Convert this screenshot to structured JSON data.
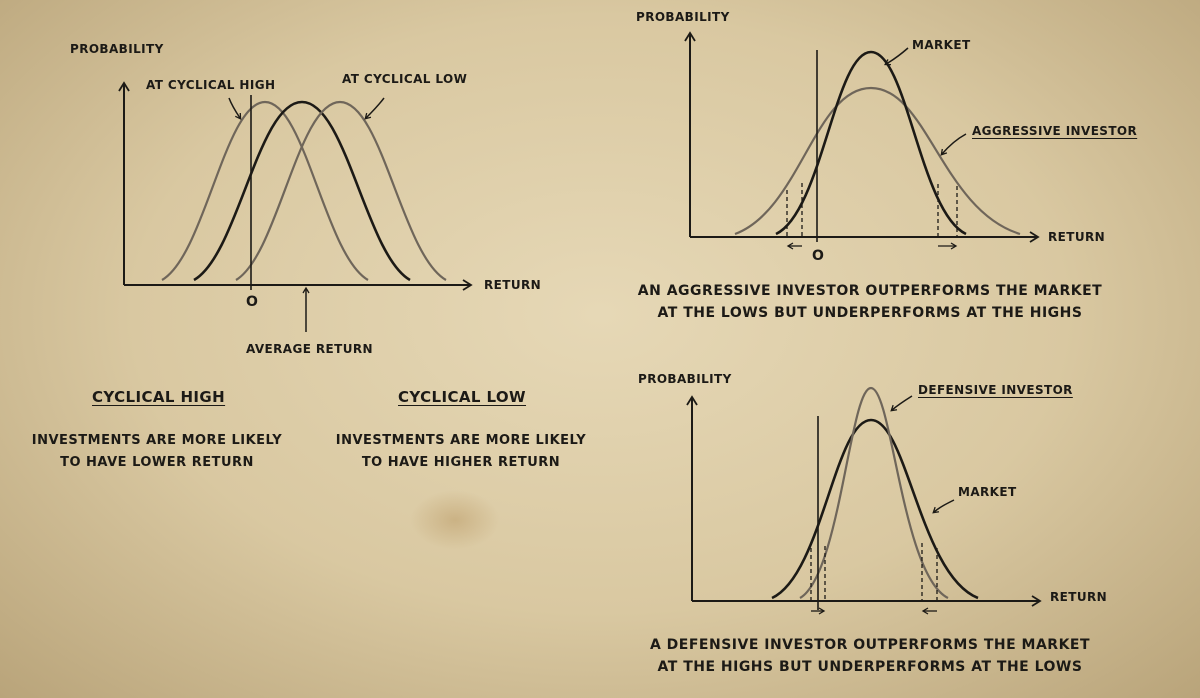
{
  "panel_cycle": {
    "y_axis_label": "PROBABILITY",
    "x_axis_label": "RETURN",
    "curve_high_label": "AT CYCLICAL HIGH",
    "curve_low_label": "AT CYCLICAL LOW",
    "zero_label": "O",
    "average_label": "AVERAGE RETURN"
  },
  "notes": {
    "high_heading": "CYCLICAL HIGH",
    "high_line1": "INVESTMENTS ARE MORE LIKELY",
    "high_line2": "TO HAVE LOWER RETURN",
    "low_heading": "CYCLICAL LOW",
    "low_line1": "INVESTMENTS ARE MORE LIKELY",
    "low_line2": "TO HAVE HIGHER RETURN"
  },
  "panel_aggressive": {
    "y_axis_label": "PROBABILITY",
    "x_axis_label": "RETURN",
    "market_label": "MARKET",
    "investor_label": "AGGRESSIVE INVESTOR",
    "zero_label": "O",
    "caption_line1": "AN AGGRESSIVE INVESTOR OUTPERFORMS THE MARKET",
    "caption_line2": "AT THE LOWS BUT UNDERPERFORMS AT THE HIGHS"
  },
  "panel_defensive": {
    "y_axis_label": "PROBABILITY",
    "x_axis_label": "RETURN",
    "market_label": "MARKET",
    "investor_label": "DEFENSIVE INVESTOR",
    "caption_line1": "A DEFENSIVE INVESTOR OUTPERFORMS THE MARKET",
    "caption_line2": "AT THE HIGHS BUT UNDERPERFORMS AT THE LOWS"
  },
  "colors": {
    "ink": "#1c1a16",
    "faded_ink": "#6f665a",
    "paper": "#d8c8a4"
  }
}
